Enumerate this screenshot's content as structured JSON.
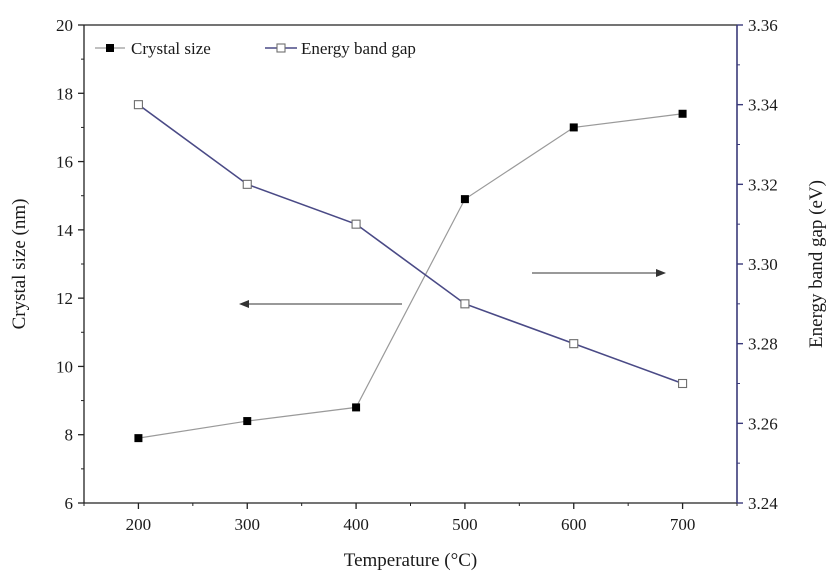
{
  "chart_data": {
    "type": "line",
    "xlabel": "Temperature (°C)",
    "ylabel_left": "Crystal size (nm)",
    "ylabel_right": "Energy band gap (eV)",
    "xlim": [
      150,
      750
    ],
    "ylim_left": [
      6,
      20
    ],
    "ylim_right": [
      3.24,
      3.36
    ],
    "x": [
      200,
      300,
      400,
      500,
      600,
      700
    ],
    "x_ticks": [
      200,
      300,
      400,
      500,
      600,
      700
    ],
    "y_ticks_left": [
      6,
      8,
      10,
      12,
      14,
      16,
      18,
      20
    ],
    "y_ticks_right": [
      "3.24",
      "3.26",
      "3.28",
      "3.30",
      "3.32",
      "3.34",
      "3.36"
    ],
    "grid": false,
    "legend_position": "top-left",
    "series": [
      {
        "name": "Crystal size",
        "axis": "left",
        "marker": "filled-square",
        "color": "#9a9a9a",
        "marker_color": "#000000",
        "values": [
          7.9,
          8.4,
          8.8,
          14.9,
          17.0,
          17.4
        ]
      },
      {
        "name": "Energy band gap",
        "axis": "right",
        "marker": "open-square",
        "color": "#4a4a86",
        "marker_color": "#6e6e6e",
        "values": [
          3.34,
          3.32,
          3.31,
          3.29,
          3.28,
          3.27
        ]
      }
    ],
    "annotations": [
      {
        "type": "arrow",
        "direction": "left",
        "target_axis": "left"
      },
      {
        "type": "arrow",
        "direction": "right",
        "target_axis": "right"
      }
    ]
  }
}
